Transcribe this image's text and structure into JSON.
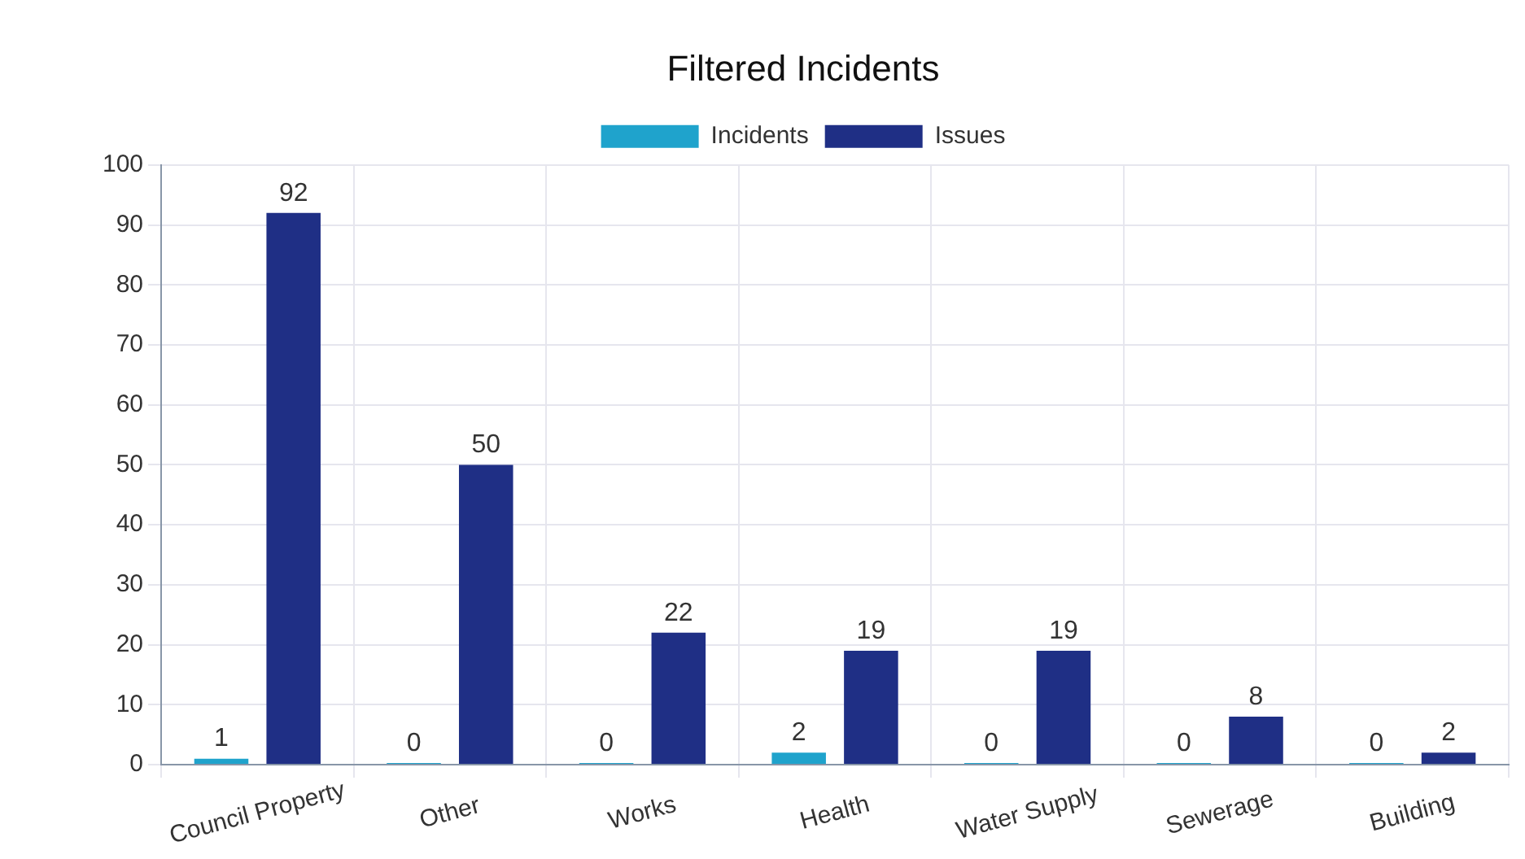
{
  "chart_data": {
    "type": "bar",
    "title": "Filtered Incidents",
    "categories": [
      "Council Property",
      "Other",
      "Works",
      "Health",
      "Water Supply",
      "Sewerage",
      "Building"
    ],
    "series": [
      {
        "name": "Incidents",
        "color": "#1fa3cc",
        "values": [
          1,
          0,
          0,
          2,
          0,
          0,
          0
        ]
      },
      {
        "name": "Issues",
        "color": "#1f2f85",
        "values": [
          92,
          50,
          22,
          19,
          19,
          8,
          2
        ]
      }
    ],
    "ylim": [
      0,
      100
    ],
    "yticks": [
      0,
      10,
      20,
      30,
      40,
      50,
      60,
      70,
      80,
      90,
      100
    ],
    "grid": true,
    "legend": "top",
    "data_labels": true
  }
}
